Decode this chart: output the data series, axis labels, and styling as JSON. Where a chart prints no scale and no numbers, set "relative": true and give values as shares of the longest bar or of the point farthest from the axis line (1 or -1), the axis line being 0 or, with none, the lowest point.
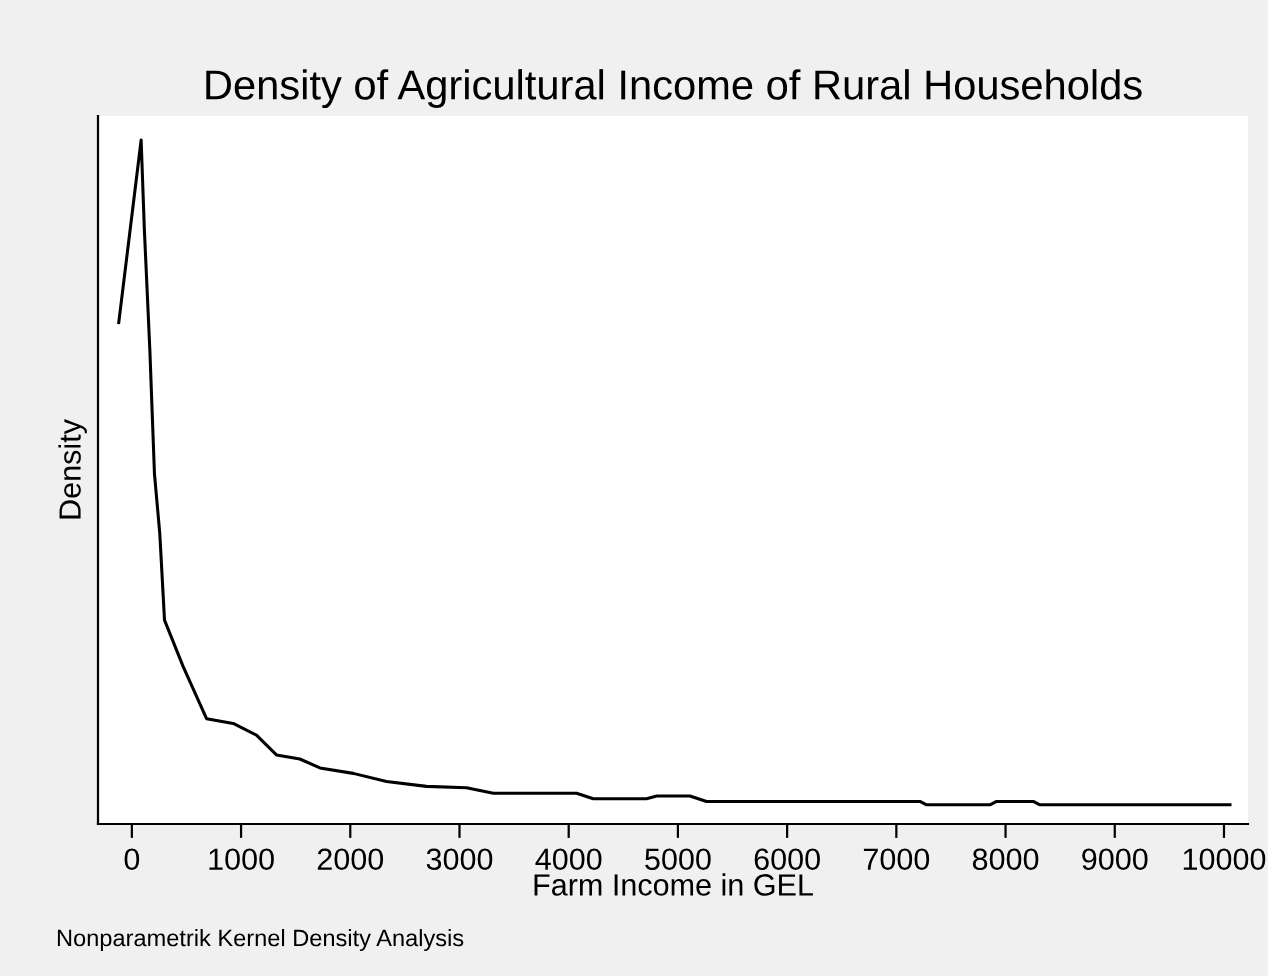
{
  "chart_data": {
    "type": "line",
    "title": "Density of Agricultural Income of Rural Households",
    "xlabel": "Farm Income in GEL",
    "ylabel": "Density",
    "annotations": [
      "Nonparametrik Kernel Density Analysis"
    ],
    "relative": true,
    "xlim": [
      -310,
      10220
    ],
    "xticks": [
      0,
      1000,
      2000,
      3000,
      4000,
      5000,
      6000,
      7000,
      8000,
      9000,
      10000
    ],
    "grid": false,
    "legend": false,
    "marker": "none",
    "line_style": "solid",
    "series": [
      {
        "color": "#000000",
        "x": [
          -120,
          85,
          115,
          165,
          207,
          256,
          299,
          470,
          684,
          928,
          1141,
          1324,
          1538,
          1722,
          2027,
          2332,
          2698,
          3064,
          3310,
          4072,
          4225,
          4713,
          4805,
          5110,
          5262,
          7216,
          7277,
          7857,
          7918,
          8254,
          8315,
          10055
        ],
        "values": [
          0.733,
          1.0,
          0.867,
          0.692,
          0.512,
          0.424,
          0.298,
          0.23,
          0.154,
          0.147,
          0.13,
          0.101,
          0.095,
          0.082,
          0.074,
          0.062,
          0.055,
          0.053,
          0.045,
          0.045,
          0.037,
          0.037,
          0.041,
          0.041,
          0.033,
          0.033,
          0.028,
          0.028,
          0.033,
          0.033,
          0.028,
          0.028
        ]
      }
    ]
  }
}
